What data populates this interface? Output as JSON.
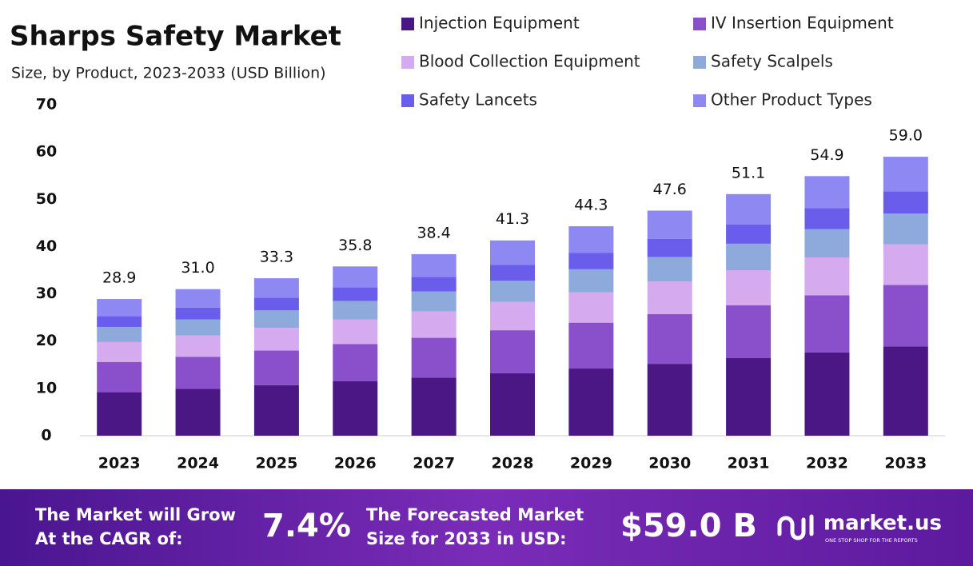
{
  "chart_data": {
    "type": "stacked-bar",
    "title": "Sharps Safety Market",
    "subtitle": "Size, by Product, 2023-2033 (USD Billion)",
    "categories": [
      "2023",
      "2024",
      "2025",
      "2026",
      "2027",
      "2028",
      "2029",
      "2030",
      "2031",
      "2032",
      "2033"
    ],
    "series": [
      {
        "name": "Injection Equipment",
        "color": "#4b1785",
        "values": [
          9.2,
          9.9,
          10.7,
          11.5,
          12.3,
          13.2,
          14.2,
          15.2,
          16.4,
          17.6,
          18.9
        ]
      },
      {
        "name": "IV Insertion Equipment",
        "color": "#8a4fcb",
        "values": [
          6.4,
          6.8,
          7.3,
          7.9,
          8.4,
          9.1,
          9.7,
          10.5,
          11.2,
          12.1,
          13.0
        ]
      },
      {
        "name": "Blood Collection Equipment",
        "color": "#d5aaee",
        "values": [
          4.2,
          4.5,
          4.8,
          5.2,
          5.6,
          6.0,
          6.4,
          6.9,
          7.4,
          8.0,
          8.6
        ]
      },
      {
        "name": "Safety Scalpels",
        "color": "#8eaadc",
        "values": [
          3.2,
          3.4,
          3.7,
          3.9,
          4.2,
          4.5,
          4.9,
          5.2,
          5.6,
          6.0,
          6.5
        ]
      },
      {
        "name": "Safety Lancets",
        "color": "#6b5deb",
        "values": [
          2.3,
          2.5,
          2.7,
          2.9,
          3.1,
          3.3,
          3.5,
          3.8,
          4.1,
          4.4,
          4.7
        ]
      },
      {
        "name": "Other Product Types",
        "color": "#8d88f2",
        "values": [
          3.6,
          3.9,
          4.1,
          4.4,
          4.8,
          5.2,
          5.6,
          6.0,
          6.4,
          6.8,
          7.3
        ]
      }
    ],
    "totals": {
      "values": [
        28.9,
        31.0,
        33.3,
        35.8,
        38.4,
        41.3,
        44.3,
        47.6,
        51.1,
        54.9,
        59.0
      ],
      "value_labels": [
        "28.9",
        "31.0",
        "33.3",
        "35.8",
        "38.4",
        "41.3",
        "44.3",
        "47.6",
        "51.1",
        "54.9",
        "59.0"
      ]
    },
    "ylim": [
      0,
      70
    ],
    "yticks": [
      0,
      10,
      20,
      30,
      40,
      50,
      60,
      70
    ],
    "grid": false
  },
  "footer": {
    "cagr_text": [
      "The Market will Grow",
      "At the CAGR of:"
    ],
    "cagr_value": "7.4%",
    "forecast_text": [
      "The Forecasted Market",
      "Size for 2033 in USD:"
    ],
    "forecast_value": "$59.0 B",
    "brand": "market.us",
    "tagline": "ONE STOP SHOP FOR THE REPORTS"
  }
}
